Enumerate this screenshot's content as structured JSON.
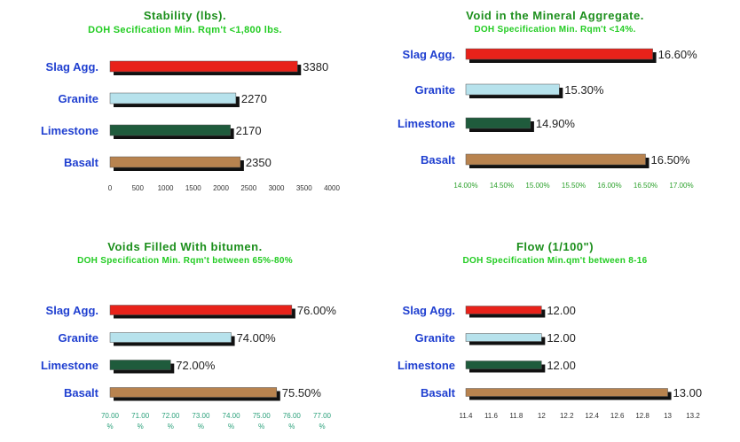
{
  "colors": {
    "title": "#1c8f1c",
    "subtitle": "#22cc22",
    "category_label": "#1f3fd0",
    "axis_text": "#222222",
    "slag": "#e8221a",
    "granite": "#b7e2ec",
    "limestone": "#1f5b3c",
    "basalt": "#b8834f",
    "shadow": "#111111"
  },
  "chart_data": [
    {
      "type": "bar",
      "orientation": "horizontal",
      "title": "Stability (lbs).",
      "subtitle": "DOH Secification Min. Rqm't <1,800 lbs.",
      "categories": [
        "Slag Agg.",
        "Granite",
        "Limestone",
        "Basalt"
      ],
      "values": [
        3380,
        2270,
        2170,
        2350
      ],
      "value_labels": [
        "3380",
        "2270",
        "2170",
        "2350"
      ],
      "xlim": [
        0,
        4000
      ],
      "ticks": [
        "0",
        "500",
        "1000",
        "1500",
        "2000",
        "2500",
        "3000",
        "3500",
        "4000"
      ],
      "tick_color": "#333333",
      "grid": false
    },
    {
      "type": "bar",
      "orientation": "horizontal",
      "title": "Void in the Mineral Aggregate.",
      "subtitle": "DOH Specification Min. Rqm't <14%.",
      "categories": [
        "Slag Agg.",
        "Granite",
        "Limestone",
        "Basalt"
      ],
      "values": [
        16.6,
        15.3,
        14.9,
        16.5
      ],
      "value_labels": [
        "16.60%",
        "15.30%",
        "14.90%",
        "16.50%"
      ],
      "xlim": [
        14,
        17
      ],
      "ticks": [
        "14.00%",
        "14.50%",
        "15.00%",
        "15.50%",
        "16.00%",
        "16.50%",
        "17.00%"
      ],
      "tick_color": "#2aa02a",
      "grid": false
    },
    {
      "type": "bar",
      "orientation": "horizontal",
      "title": "Voids Filled With bitumen.",
      "subtitle": "DOH Specification Min. Rqm't between 65%-80%",
      "categories": [
        "Slag Agg.",
        "Granite",
        "Limestone",
        "Basalt"
      ],
      "values": [
        76.0,
        74.0,
        72.0,
        75.5
      ],
      "value_labels": [
        "76.00%",
        "74.00%",
        "72.00%",
        "75.50%"
      ],
      "xlim": [
        70,
        77
      ],
      "ticks": [
        "70.00",
        "71.00",
        "72.00",
        "73.00",
        "74.00",
        "75.00",
        "76.00",
        "77.00"
      ],
      "tick_suffix": "%",
      "tick_color": "#2aa07a",
      "grid": false
    },
    {
      "type": "bar",
      "orientation": "horizontal",
      "title": "Flow (1/100\")",
      "subtitle": "DOH Specification Min.qm't between 8-16",
      "categories": [
        "Slag Agg.",
        "Granite",
        "Limestone",
        "Basalt"
      ],
      "values": [
        12.0,
        12.0,
        12.0,
        13.0
      ],
      "value_labels": [
        "12.00",
        "12.00",
        "12.00",
        "13.00"
      ],
      "xlim": [
        11.4,
        13.2
      ],
      "ticks": [
        "11.4",
        "11.6",
        "11.8",
        "12",
        "12.2",
        "12.4",
        "12.6",
        "12.8",
        "13",
        "13.2"
      ],
      "tick_color": "#333333",
      "grid": false
    }
  ]
}
